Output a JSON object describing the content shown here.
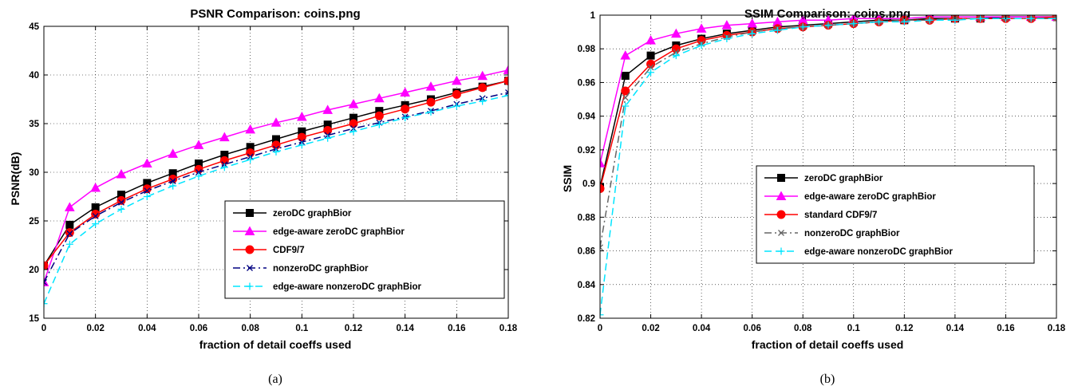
{
  "figure": {
    "captions": [
      "(a)",
      "(b)"
    ]
  },
  "chart_data": [
    {
      "type": "line",
      "title": "PSNR Comparison: coins.png",
      "xlabel": "fraction of detail coeffs used",
      "ylabel": "PSNR(dB)",
      "xlim": [
        0,
        0.18
      ],
      "ylim": [
        15,
        45
      ],
      "xticks": [
        "0",
        "0.02",
        "0.04",
        "0.06",
        "0.08",
        "0.1",
        "0.12",
        "0.14",
        "0.16",
        "0.18"
      ],
      "yticks": [
        "15",
        "20",
        "25",
        "30",
        "35",
        "40",
        "45"
      ],
      "grid": true,
      "legend_position": "lower-right",
      "x": [
        0,
        0.01,
        0.02,
        0.03,
        0.04,
        0.05,
        0.06,
        0.07,
        0.08,
        0.09,
        0.1,
        0.11,
        0.12,
        0.13,
        0.14,
        0.15,
        0.16,
        0.17,
        0.18
      ],
      "series": [
        {
          "name": "zeroDC graphBior",
          "color": "#000000",
          "marker": "square",
          "dash": "solid",
          "values": [
            20.4,
            24.6,
            26.4,
            27.7,
            28.9,
            29.9,
            30.9,
            31.8,
            32.6,
            33.4,
            34.2,
            34.9,
            35.6,
            36.3,
            36.9,
            37.5,
            38.2,
            38.8,
            39.4
          ]
        },
        {
          "name": "edge-aware zeroDC graphBior",
          "color": "#ff00ff",
          "marker": "triangle",
          "dash": "solid",
          "values": [
            18.7,
            26.4,
            28.4,
            29.8,
            30.9,
            31.9,
            32.8,
            33.6,
            34.4,
            35.1,
            35.7,
            36.4,
            37.0,
            37.6,
            38.2,
            38.8,
            39.4,
            39.9,
            40.5
          ]
        },
        {
          "name": "CDF9/7",
          "color": "#ff0000",
          "marker": "circle",
          "dash": "solid",
          "values": [
            20.4,
            23.8,
            25.7,
            27.1,
            28.3,
            29.3,
            30.3,
            31.2,
            32.0,
            32.8,
            33.6,
            34.3,
            35.0,
            35.8,
            36.5,
            37.2,
            38.0,
            38.7,
            39.4
          ]
        },
        {
          "name": "nonzeroDC graphBior",
          "color": "#000080",
          "marker": "x",
          "dash": "dashdot",
          "values": [
            18.7,
            23.7,
            25.5,
            26.9,
            28.1,
            29.1,
            30.0,
            30.8,
            31.6,
            32.4,
            33.1,
            33.8,
            34.5,
            35.1,
            35.7,
            36.3,
            37.0,
            37.6,
            38.2
          ]
        },
        {
          "name": "edge-aware nonzeroDC graphBior",
          "color": "#00e5ff",
          "marker": "plus",
          "dash": "dashed",
          "values": [
            16.5,
            22.6,
            24.7,
            26.2,
            27.5,
            28.6,
            29.6,
            30.5,
            31.3,
            32.1,
            32.8,
            33.5,
            34.2,
            34.9,
            35.6,
            36.2,
            36.8,
            37.3,
            37.9
          ]
        }
      ]
    },
    {
      "type": "line",
      "title": "SSIM Comparison: coins.png",
      "xlabel": "fraction of detail coeffs used",
      "ylabel": "SSIM",
      "xlim": [
        0,
        0.18
      ],
      "ylim": [
        0.82,
        1.0
      ],
      "xticks": [
        "0",
        "0.02",
        "0.04",
        "0.06",
        "0.08",
        "0.1",
        "0.12",
        "0.14",
        "0.16",
        "0.18"
      ],
      "yticks": [
        "0.82",
        "0.84",
        "0.86",
        "0.88",
        "0.9",
        "0.92",
        "0.94",
        "0.96",
        "0.98",
        "1"
      ],
      "grid": true,
      "legend_position": "center-right",
      "x": [
        0,
        0.01,
        0.02,
        0.03,
        0.04,
        0.05,
        0.06,
        0.07,
        0.08,
        0.09,
        0.1,
        0.11,
        0.12,
        0.13,
        0.14,
        0.15,
        0.16,
        0.17,
        0.18
      ],
      "series": [
        {
          "name": "zeroDC graphBior",
          "color": "#000000",
          "marker": "square",
          "dash": "solid",
          "values": [
            0.898,
            0.964,
            0.976,
            0.982,
            0.986,
            0.989,
            0.991,
            0.993,
            0.994,
            0.995,
            0.996,
            0.997,
            0.997,
            0.998,
            0.998,
            0.998,
            0.999,
            0.999,
            0.999
          ]
        },
        {
          "name": "edge-aware zeroDC graphBior",
          "color": "#ff00ff",
          "marker": "triangle",
          "dash": "solid",
          "values": [
            0.912,
            0.976,
            0.985,
            0.989,
            0.992,
            0.994,
            0.995,
            0.996,
            0.997,
            0.997,
            0.998,
            0.998,
            0.998,
            0.999,
            0.999,
            0.999,
            0.999,
            0.999,
            0.999
          ]
        },
        {
          "name": "standard CDF9/7",
          "color": "#ff0000",
          "marker": "circle",
          "dash": "solid",
          "values": [
            0.897,
            0.955,
            0.971,
            0.98,
            0.985,
            0.988,
            0.99,
            0.992,
            0.993,
            0.994,
            0.995,
            0.996,
            0.997,
            0.997,
            0.998,
            0.998,
            0.998,
            0.998,
            0.999
          ]
        },
        {
          "name": "nonzeroDC graphBior",
          "color": "#666666",
          "marker": "x",
          "dash": "dashdot",
          "values": [
            0.862,
            0.951,
            0.969,
            0.978,
            0.983,
            0.987,
            0.99,
            0.992,
            0.993,
            0.994,
            0.995,
            0.996,
            0.997,
            0.997,
            0.998,
            0.998,
            0.998,
            0.998,
            0.998
          ]
        },
        {
          "name": "edge-aware nonzeroDC graphBior",
          "color": "#00e5ff",
          "marker": "plus",
          "dash": "dashed",
          "values": [
            0.822,
            0.946,
            0.966,
            0.976,
            0.982,
            0.986,
            0.989,
            0.991,
            0.993,
            0.994,
            0.995,
            0.996,
            0.996,
            0.997,
            0.997,
            0.998,
            0.998,
            0.998,
            0.998
          ]
        }
      ]
    }
  ]
}
